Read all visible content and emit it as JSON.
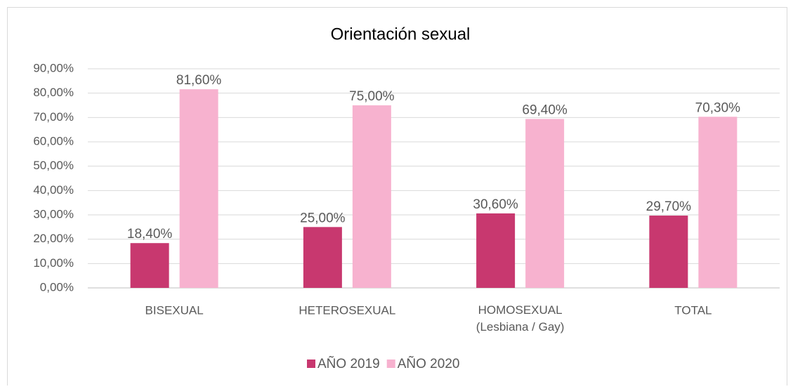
{
  "chart_data": {
    "type": "bar",
    "title": "Orientación sexual",
    "categories": [
      "BISEXUAL",
      "HETEROSEXUAL",
      "HOMOSEXUAL\n(Lesbiana / Gay)",
      "TOTAL"
    ],
    "series": [
      {
        "name": "AÑO 2019",
        "color": "#c8386f",
        "values": [
          18.4,
          25.0,
          30.6,
          29.7
        ],
        "value_labels": [
          "18,40%",
          "25,00%",
          "30,60%",
          "29,70%"
        ]
      },
      {
        "name": "AÑO 2020",
        "color": "#f7b2cf",
        "values": [
          81.6,
          75.0,
          69.4,
          70.3
        ],
        "value_labels": [
          "81,60%",
          "75,00%",
          "69,40%",
          "70,30%"
        ]
      }
    ],
    "ylim": [
      0,
      90
    ],
    "yticks": [
      {
        "value": 0,
        "label": "0,00%"
      },
      {
        "value": 10,
        "label": "10,00%"
      },
      {
        "value": 20,
        "label": "20,00%"
      },
      {
        "value": 30,
        "label": "30,00%"
      },
      {
        "value": 40,
        "label": "40,00%"
      },
      {
        "value": 50,
        "label": "50,00%"
      },
      {
        "value": 60,
        "label": "60,00%"
      },
      {
        "value": 70,
        "label": "70,00%"
      },
      {
        "value": 80,
        "label": "80,00%"
      },
      {
        "value": 90,
        "label": "90,00%"
      }
    ],
    "grid": true,
    "legend": "bottom"
  }
}
